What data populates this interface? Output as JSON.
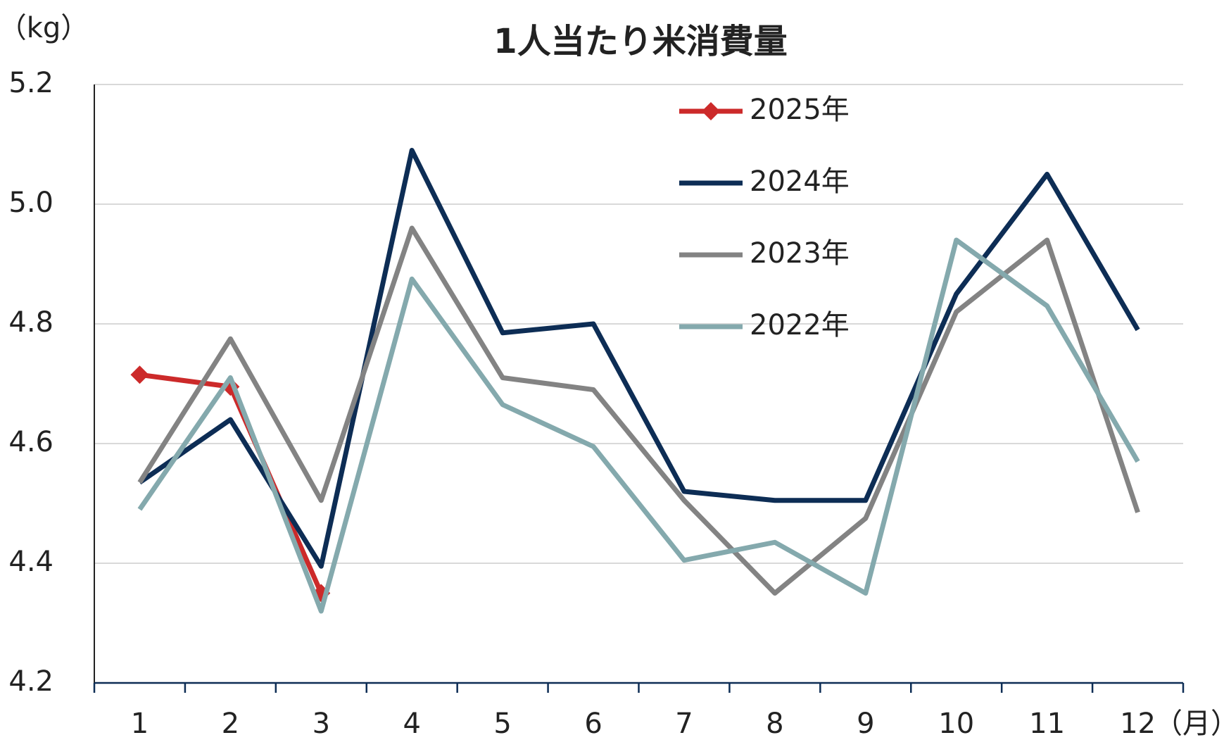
{
  "chart_data": {
    "type": "line",
    "title": "1人当たり米消費量",
    "y_unit": "（kg）",
    "x_unit": "（月）",
    "categories": [
      "1",
      "2",
      "3",
      "4",
      "5",
      "6",
      "7",
      "8",
      "9",
      "10",
      "11",
      "12"
    ],
    "ylim": [
      4.2,
      5.2
    ],
    "yticks": [
      4.2,
      4.4,
      4.6,
      4.8,
      {
        "value": 5,
        "label": "5.0"
      },
      5.2
    ],
    "grid": true,
    "legend": "top",
    "series": [
      {
        "name": "2025年",
        "color": "#cc2a2a",
        "marker": "diamond",
        "values": [
          4.715,
          4.695,
          4.35,
          null,
          null,
          null,
          null,
          null,
          null,
          null,
          null,
          null
        ]
      },
      {
        "name": "2024年",
        "color": "#0d2d55",
        "values": [
          4.535,
          4.64,
          4.395,
          5.09,
          4.785,
          4.8,
          4.52,
          4.505,
          4.505,
          4.85,
          5.05,
          4.79
        ]
      },
      {
        "name": "2023年",
        "color": "#838383",
        "values": [
          4.535,
          4.775,
          4.505,
          4.96,
          4.71,
          4.69,
          4.505,
          4.35,
          4.475,
          4.82,
          4.94,
          4.485
        ]
      },
      {
        "name": "2022年",
        "color": "#84a9ad",
        "values": [
          4.49,
          4.71,
          4.32,
          4.875,
          4.665,
          4.595,
          4.405,
          4.435,
          4.35,
          4.94,
          4.83,
          4.57
        ]
      }
    ]
  }
}
